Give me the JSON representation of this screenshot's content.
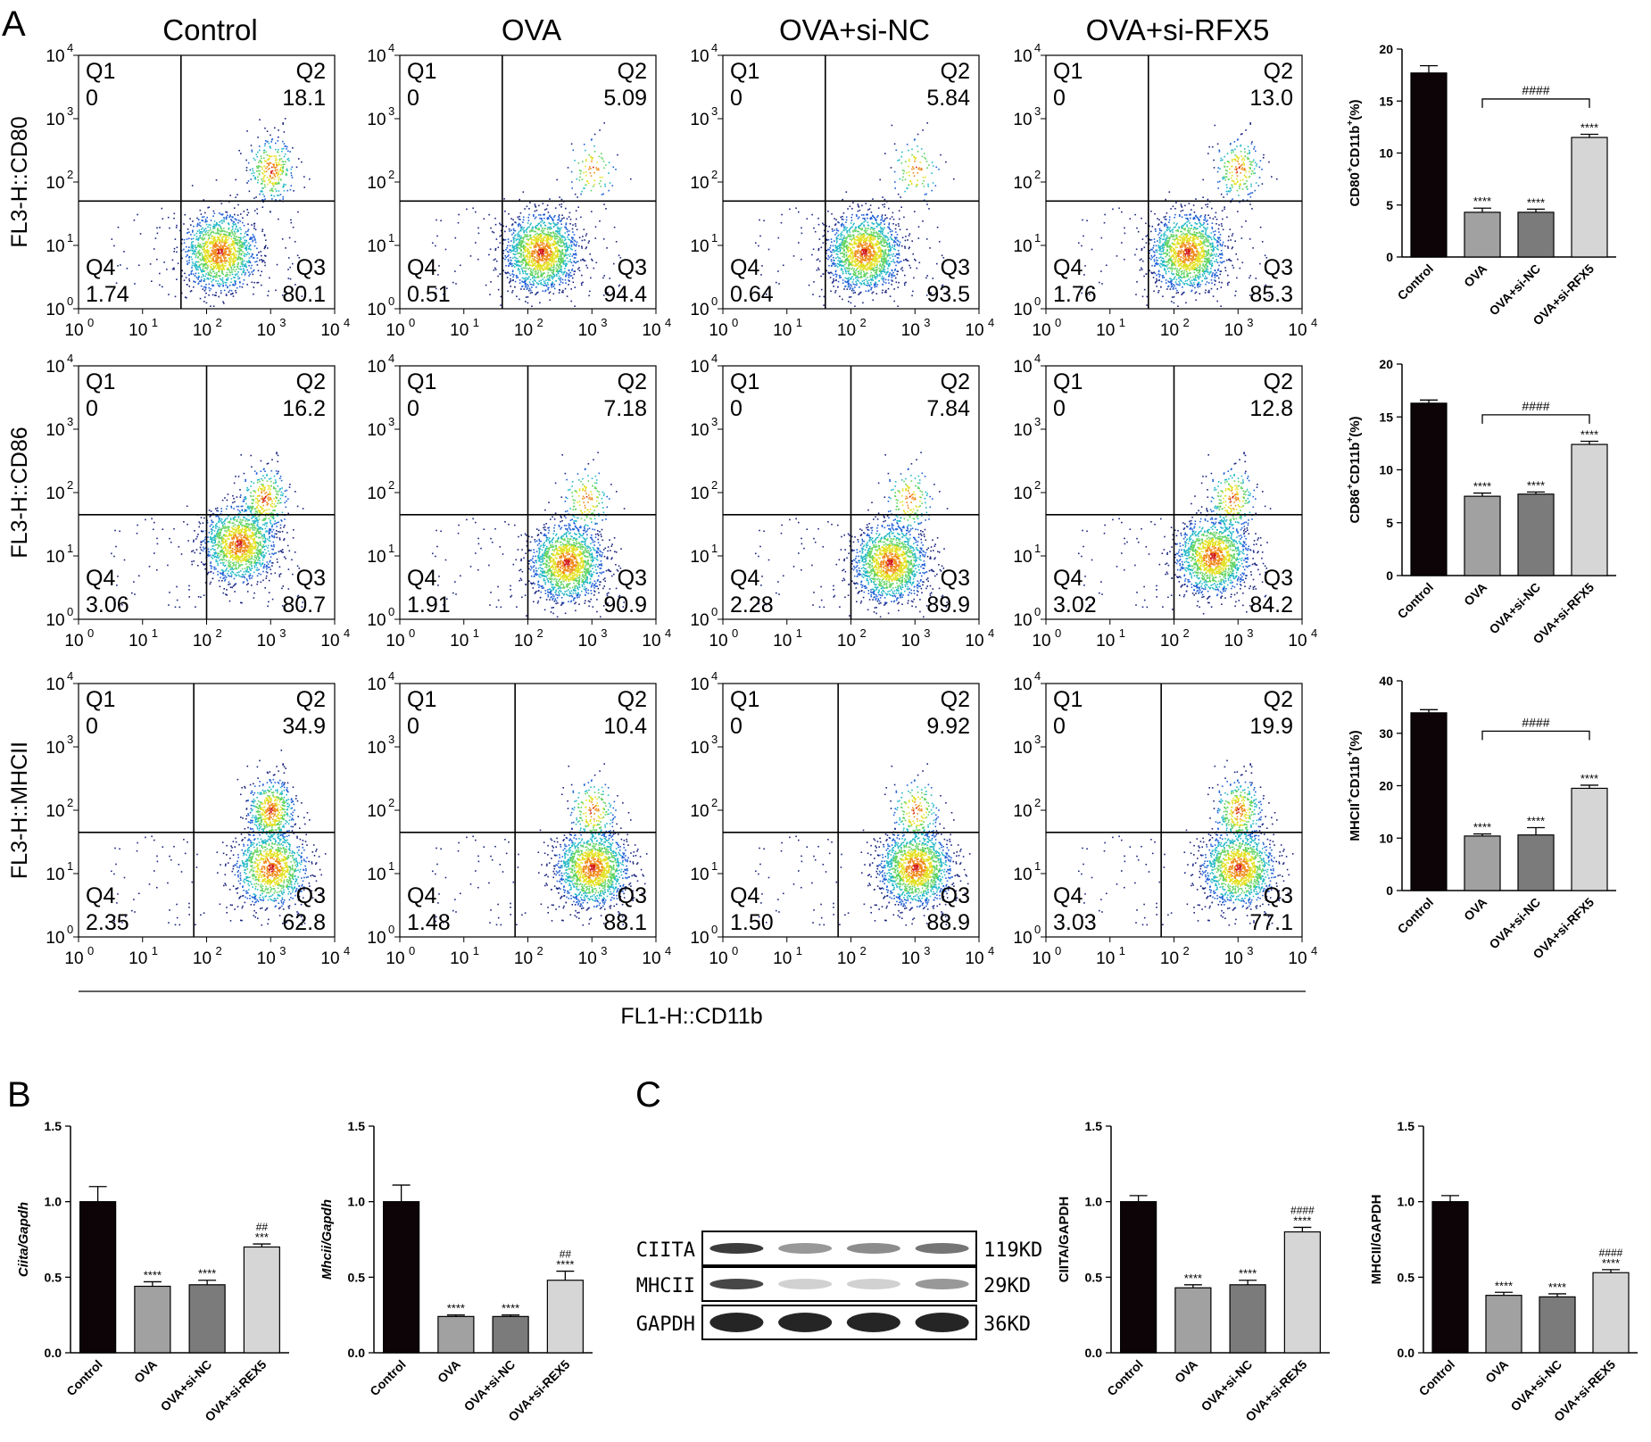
{
  "panel_letters": {
    "a": "A",
    "b": "B",
    "c": "C"
  },
  "flow": {
    "group_titles": [
      "Control",
      "OVA",
      "OVA+si-NC",
      "OVA+si-RFX5"
    ],
    "quadrant_names": {
      "q1": "Q1",
      "q2": "Q2",
      "q3": "Q3",
      "q4": "Q4"
    },
    "tick_labels": [
      "10",
      "10",
      "10",
      "10",
      "10"
    ],
    "tick_exponents": [
      "0",
      "1",
      "2",
      "3",
      "4"
    ],
    "x_axis_label": "FL1-H::CD11b",
    "rows": [
      {
        "y_axis_label": "FL3-H::CD80",
        "values": [
          {
            "q1": "0",
            "q2": "18.1",
            "q3": "80.1",
            "q4": "1.74"
          },
          {
            "q1": "0",
            "q2": "5.09",
            "q3": "94.4",
            "q4": "0.51"
          },
          {
            "q1": "0",
            "q2": "5.84",
            "q3": "93.5",
            "q4": "0.64"
          },
          {
            "q1": "0",
            "q2": "13.0",
            "q3": "85.3",
            "q4": "1.76"
          }
        ],
        "gate_x": [
          1.6,
          1.6,
          1.6,
          1.6
        ],
        "gate_y": [
          1.7,
          1.7,
          1.7,
          1.7
        ],
        "clusters": [
          [
            2.2,
            0.9,
            3.0,
            2.2
          ],
          [
            2.2,
            0.9,
            3.0,
            2.2
          ],
          [
            2.2,
            0.9,
            3.0,
            2.2
          ],
          [
            2.2,
            0.9,
            3.0,
            2.2
          ]
        ]
      },
      {
        "y_axis_label": "FL3-H::CD86",
        "values": [
          {
            "q1": "0",
            "q2": "16.2",
            "q3": "80.7",
            "q4": "3.06"
          },
          {
            "q1": "0",
            "q2": "7.18",
            "q3": "90.9",
            "q4": "1.91"
          },
          {
            "q1": "0",
            "q2": "7.84",
            "q3": "89.9",
            "q4": "2.28"
          },
          {
            "q1": "0",
            "q2": "12.8",
            "q3": "84.2",
            "q4": "3.02"
          }
        ],
        "gate_x": [
          2.0,
          2.0,
          2.0,
          2.0
        ],
        "gate_y": [
          1.65,
          1.65,
          1.65,
          1.65
        ],
        "clusters": [
          [
            2.5,
            1.2,
            2.9,
            1.9
          ],
          [
            2.6,
            0.9,
            2.9,
            1.9
          ],
          [
            2.6,
            0.9,
            2.9,
            1.9
          ],
          [
            2.6,
            1.0,
            2.9,
            1.9
          ]
        ]
      },
      {
        "y_axis_label": "FL3-H::MHCII",
        "values": [
          {
            "q1": "0",
            "q2": "34.9",
            "q3": "62.8",
            "q4": "2.35"
          },
          {
            "q1": "0",
            "q2": "10.4",
            "q3": "88.1",
            "q4": "1.48"
          },
          {
            "q1": "0",
            "q2": "9.92",
            "q3": "88.9",
            "q4": "1.50"
          },
          {
            "q1": "0",
            "q2": "19.9",
            "q3": "77.1",
            "q4": "3.03"
          }
        ],
        "gate_x": [
          1.8,
          1.8,
          1.8,
          1.8
        ],
        "gate_y": [
          1.65,
          1.65,
          1.65,
          1.65
        ],
        "clusters": [
          [
            3.0,
            1.1,
            3.0,
            2.0
          ],
          [
            3.0,
            1.1,
            3.0,
            2.0
          ],
          [
            3.0,
            1.1,
            3.0,
            2.0
          ],
          [
            3.0,
            1.1,
            3.0,
            2.0
          ]
        ]
      }
    ]
  },
  "chart_data": [
    {
      "type": "bar",
      "panel": "A",
      "ylabel_main": "CD80",
      "ylabel_mid": "CD11b",
      "ylabel_tail": "(%)",
      "categories": [
        "Control",
        "OVA",
        "OVA+si-NC",
        "OVA+si-RFX5"
      ],
      "values": [
        17.7,
        4.3,
        4.3,
        11.5
      ],
      "errors": [
        0.7,
        0.4,
        0.3,
        0.3
      ],
      "ylim": [
        0,
        20
      ],
      "yticks": [
        "0",
        "5",
        "10",
        "15",
        "20"
      ],
      "stars": [
        "",
        "****",
        "****",
        "****"
      ],
      "bracket": {
        "from": 1,
        "to": 3,
        "label": "####"
      }
    },
    {
      "type": "bar",
      "panel": "A",
      "ylabel_main": "CD86",
      "ylabel_mid": "CD11b",
      "ylabel_tail": "(%)",
      "categories": [
        "Control",
        "OVA",
        "OVA+si-NC",
        "OVA+si-RFX5"
      ],
      "values": [
        16.3,
        7.5,
        7.7,
        12.4
      ],
      "errors": [
        0.3,
        0.3,
        0.2,
        0.3
      ],
      "ylim": [
        0,
        20
      ],
      "yticks": [
        "0",
        "5",
        "10",
        "15",
        "20"
      ],
      "stars": [
        "",
        "****",
        "****",
        "****"
      ],
      "bracket": {
        "from": 1,
        "to": 3,
        "label": "####"
      }
    },
    {
      "type": "bar",
      "panel": "A",
      "ylabel_main": "MHCII",
      "ylabel_mid": "CD11b",
      "ylabel_tail": "(%)",
      "categories": [
        "Control",
        "OVA",
        "OVA+si-NC",
        "OVA+si-RFX5"
      ],
      "values": [
        33.9,
        10.4,
        10.6,
        19.5
      ],
      "errors": [
        0.6,
        0.4,
        1.4,
        0.6
      ],
      "ylim": [
        0,
        40
      ],
      "yticks": [
        "0",
        "10",
        "20",
        "30",
        "40"
      ],
      "stars": [
        "",
        "****",
        "****",
        "****"
      ],
      "bracket": {
        "from": 1,
        "to": 3,
        "label": "####"
      }
    },
    {
      "type": "bar",
      "panel": "B",
      "ylabel": "Ciita/Gapdh",
      "categories": [
        "Control",
        "OVA",
        "OVA+si-NC",
        "OVA+si-REX5"
      ],
      "values": [
        1.0,
        0.44,
        0.45,
        0.7
      ],
      "errors": [
        0.1,
        0.03,
        0.03,
        0.02
      ],
      "ylim": [
        0,
        1.5
      ],
      "yticks": [
        "0.0",
        "0.5",
        "1.0",
        "1.5"
      ],
      "stars": [
        "",
        "****",
        "****",
        "***"
      ],
      "hash": [
        "",
        "",
        "",
        "##"
      ]
    },
    {
      "type": "bar",
      "panel": "B",
      "ylabel": "Mhcii/Gapdh",
      "categories": [
        "Control",
        "OVA",
        "OVA+si-NC",
        "OVA+si-REX5"
      ],
      "values": [
        1.0,
        0.24,
        0.24,
        0.48
      ],
      "errors": [
        0.11,
        0.01,
        0.01,
        0.06
      ],
      "ylim": [
        0,
        1.5
      ],
      "yticks": [
        "0.0",
        "0.5",
        "1.0",
        "1.5"
      ],
      "stars": [
        "",
        "****",
        "****",
        "****"
      ],
      "hash": [
        "",
        "",
        "",
        "##"
      ]
    },
    {
      "type": "bar",
      "panel": "C",
      "ylabel": "CIITA/GAPDH",
      "categories": [
        "Control",
        "OVA",
        "OVA+si-NC",
        "OVA+si-REX5"
      ],
      "values": [
        1.0,
        0.43,
        0.45,
        0.8
      ],
      "errors": [
        0.04,
        0.02,
        0.03,
        0.03
      ],
      "ylim": [
        0,
        1.5
      ],
      "yticks": [
        "0.0",
        "0.5",
        "1.0",
        "1.5"
      ],
      "stars": [
        "",
        "****",
        "****",
        "****"
      ],
      "hash": [
        "",
        "",
        "",
        "####"
      ]
    },
    {
      "type": "bar",
      "panel": "C",
      "ylabel": "MHCII/GAPDH",
      "categories": [
        "Control",
        "OVA",
        "OVA+si-NC",
        "OVA+si-REX5"
      ],
      "values": [
        1.0,
        0.38,
        0.37,
        0.53
      ],
      "errors": [
        0.04,
        0.02,
        0.02,
        0.02
      ],
      "ylim": [
        0,
        1.5
      ],
      "yticks": [
        "0.0",
        "0.5",
        "1.0",
        "1.5"
      ],
      "stars": [
        "",
        "****",
        "****",
        "****"
      ],
      "hash": [
        "",
        "",
        "",
        "####"
      ]
    }
  ],
  "blot": {
    "labels": [
      "CIITA",
      "MHCII",
      "GAPDH"
    ],
    "sizes": [
      "119KD",
      "29KD",
      "36KD"
    ],
    "intensity": [
      [
        0.85,
        0.45,
        0.5,
        0.6
      ],
      [
        0.8,
        0.2,
        0.2,
        0.45
      ],
      [
        0.95,
        0.95,
        0.95,
        0.95
      ]
    ]
  },
  "colors": {
    "bars": [
      "#0c0407",
      "#a1a1a1",
      "#7b7b7b",
      "#d6d6d6"
    ],
    "ink": "#000000",
    "density": [
      "#1a237e",
      "#1f5fd6",
      "#22b8c7",
      "#5fd35f",
      "#e3e021",
      "#f08a1a",
      "#d11a1a"
    ]
  }
}
